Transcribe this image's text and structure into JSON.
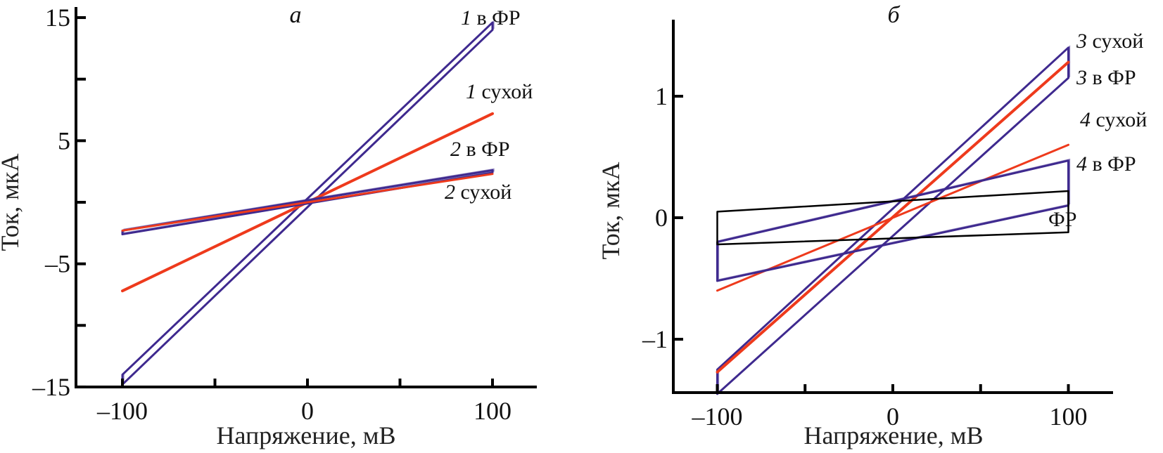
{
  "colors": {
    "in_saline": "#3f2a8f",
    "dry": "#ee3a1c",
    "saline_only": "#000000",
    "axis": "#000000"
  },
  "chart_data": [
    {
      "type": "line",
      "panel_label": "а",
      "title": "",
      "xlabel": "Напряжение, мВ",
      "ylabel": "Ток, мкА",
      "xlim": [
        -125,
        125
      ],
      "ylim": [
        -15,
        15
      ],
      "x_ticks": [
        -100,
        -50,
        0,
        50,
        100
      ],
      "x_tick_labels": [
        "–100",
        "",
        "0",
        "",
        "100"
      ],
      "y_ticks": [
        -15,
        -10,
        -5,
        0,
        5,
        10,
        15
      ],
      "y_tick_labels": [
        "–15",
        "",
        "–5",
        "",
        "5",
        "",
        "15"
      ],
      "grid": false,
      "series": [
        {
          "name": "1 в ФР",
          "label_num": "1",
          "label_text": " в ФР",
          "color_key": "in_saline",
          "kind": "loop",
          "x": [
            -100,
            100
          ],
          "y_forward": [
            -14.8,
            14.0
          ],
          "y_backward": [
            -14.0,
            14.6
          ]
        },
        {
          "name": "1 сухой",
          "label_num": "1",
          "label_text": " сухой",
          "color_key": "dry",
          "kind": "line",
          "x": [
            -100,
            100
          ],
          "y": [
            -7.2,
            7.2
          ]
        },
        {
          "name": "2 в ФР",
          "label_num": "2",
          "label_text": " в ФР",
          "color_key": "in_saline",
          "kind": "loop",
          "x": [
            -100,
            100
          ],
          "y_forward": [
            -2.6,
            2.4
          ],
          "y_backward": [
            -2.3,
            2.6
          ]
        },
        {
          "name": "2 сухой",
          "label_num": "2",
          "label_text": " сухой",
          "color_key": "dry",
          "kind": "line",
          "x": [
            -100,
            100
          ],
          "y": [
            -2.3,
            2.3
          ]
        }
      ]
    },
    {
      "type": "line",
      "panel_label": "б",
      "title": "",
      "xlabel": "Напряжение, мВ",
      "ylabel": "Ток, мкА",
      "xlim": [
        -125,
        125
      ],
      "ylim": [
        -1.5,
        1.65
      ],
      "x_ticks": [
        -100,
        -50,
        0,
        50,
        100
      ],
      "x_tick_labels": [
        "–100",
        "",
        "0",
        "",
        "100"
      ],
      "y_ticks": [
        -1,
        0,
        1
      ],
      "y_tick_labels": [
        "–1",
        "0",
        "1"
      ],
      "grid": false,
      "series": [
        {
          "name": "3 сухой",
          "label_num": "3",
          "label_text": " сухой",
          "color_key": "in_saline",
          "kind": "loop",
          "x": [
            -100,
            100
          ],
          "y_upper": [
            -1.25,
            1.4
          ],
          "y_lower": [
            -1.45,
            1.15
          ]
        },
        {
          "name": "3 в ФР",
          "label_num": "3",
          "label_text": " в ФР",
          "color_key": "dry",
          "kind": "line",
          "x": [
            -100,
            100
          ],
          "y": [
            -1.27,
            1.28
          ]
        },
        {
          "name": "4 сухой",
          "label_num": "4",
          "label_text": " сухой",
          "color_key": "dry",
          "kind": "line",
          "x": [
            -100,
            100
          ],
          "y": [
            -0.6,
            0.6
          ]
        },
        {
          "name": "4 в ФР",
          "label_num": "4",
          "label_text": " в ФР",
          "color_key": "in_saline",
          "kind": "loop",
          "x": [
            -100,
            100
          ],
          "y_upper": [
            -0.2,
            0.47
          ],
          "y_lower": [
            -0.52,
            0.1
          ]
        },
        {
          "name": "ФР",
          "label_num": "",
          "label_text": "ФР",
          "color_key": "saline_only",
          "kind": "loop",
          "x": [
            -100,
            100
          ],
          "y_upper": [
            0.05,
            0.22
          ],
          "y_lower": [
            -0.22,
            -0.12
          ]
        }
      ]
    }
  ]
}
